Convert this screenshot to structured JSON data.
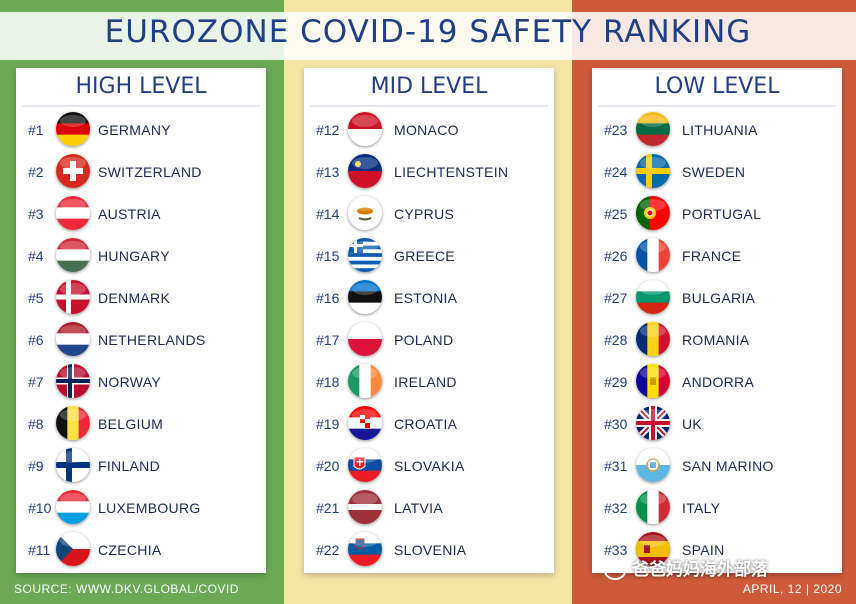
{
  "title": "EUROZONE COVID-19 SAFETY RANKING",
  "footer": {
    "source": "SOURCE: WWW.DKV.GLOBAL/COVID",
    "date": "APRIL, 12 | 2020"
  },
  "watermark": "爸爸妈妈海外部落",
  "colors": {
    "high": "#6aaa55",
    "mid": "#f5e6a6",
    "low": "#cf5a3a",
    "title": "#1f3f86"
  },
  "columns": [
    {
      "title": "HIGH LEVEL",
      "items": [
        {
          "rank": "#1",
          "name": "GERMANY",
          "flag": "germany-flag-icon"
        },
        {
          "rank": "#2",
          "name": "SWITZERLAND",
          "flag": "switzerland-flag-icon"
        },
        {
          "rank": "#3",
          "name": "AUSTRIA",
          "flag": "austria-flag-icon"
        },
        {
          "rank": "#4",
          "name": "HUNGARY",
          "flag": "hungary-flag-icon"
        },
        {
          "rank": "#5",
          "name": "DENMARK",
          "flag": "denmark-flag-icon"
        },
        {
          "rank": "#6",
          "name": "NETHERLANDS",
          "flag": "netherlands-flag-icon"
        },
        {
          "rank": "#7",
          "name": "NORWAY",
          "flag": "norway-flag-icon"
        },
        {
          "rank": "#8",
          "name": "BELGIUM",
          "flag": "belgium-flag-icon"
        },
        {
          "rank": "#9",
          "name": "FINLAND",
          "flag": "finland-flag-icon"
        },
        {
          "rank": "#10",
          "name": "LUXEMBOURG",
          "flag": "luxembourg-flag-icon"
        },
        {
          "rank": "#11",
          "name": "CZECHIA",
          "flag": "czechia-flag-icon"
        }
      ]
    },
    {
      "title": "MID LEVEL",
      "items": [
        {
          "rank": "#12",
          "name": "MONACO",
          "flag": "monaco-flag-icon"
        },
        {
          "rank": "#13",
          "name": "LIECHTENSTEIN",
          "flag": "liechtenstein-flag-icon"
        },
        {
          "rank": "#14",
          "name": "CYPRUS",
          "flag": "cyprus-flag-icon"
        },
        {
          "rank": "#15",
          "name": "GREECE",
          "flag": "greece-flag-icon"
        },
        {
          "rank": "#16",
          "name": "ESTONIA",
          "flag": "estonia-flag-icon"
        },
        {
          "rank": "#17",
          "name": "POLAND",
          "flag": "poland-flag-icon"
        },
        {
          "rank": "#18",
          "name": "IRELAND",
          "flag": "ireland-flag-icon"
        },
        {
          "rank": "#19",
          "name": "CROATIA",
          "flag": "croatia-flag-icon"
        },
        {
          "rank": "#20",
          "name": "SLOVAKIA",
          "flag": "slovakia-flag-icon"
        },
        {
          "rank": "#21",
          "name": "LATVIA",
          "flag": "latvia-flag-icon"
        },
        {
          "rank": "#22",
          "name": "SLOVENIA",
          "flag": "slovenia-flag-icon"
        }
      ]
    },
    {
      "title": "LOW LEVEL",
      "items": [
        {
          "rank": "#23",
          "name": "LITHUANIA",
          "flag": "lithuania-flag-icon"
        },
        {
          "rank": "#24",
          "name": "SWEDEN",
          "flag": "sweden-flag-icon"
        },
        {
          "rank": "#25",
          "name": "PORTUGAL",
          "flag": "portugal-flag-icon"
        },
        {
          "rank": "#26",
          "name": "FRANCE",
          "flag": "france-flag-icon"
        },
        {
          "rank": "#27",
          "name": "BULGARIA",
          "flag": "bulgaria-flag-icon"
        },
        {
          "rank": "#28",
          "name": "ROMANIA",
          "flag": "romania-flag-icon"
        },
        {
          "rank": "#29",
          "name": "ANDORRA",
          "flag": "andorra-flag-icon"
        },
        {
          "rank": "#30",
          "name": "UK",
          "flag": "uk-flag-icon"
        },
        {
          "rank": "#31",
          "name": "SAN MARINO",
          "flag": "san-marino-flag-icon"
        },
        {
          "rank": "#32",
          "name": "ITALY",
          "flag": "italy-flag-icon"
        },
        {
          "rank": "#33",
          "name": "SPAIN",
          "flag": "spain-flag-icon"
        }
      ]
    }
  ]
}
